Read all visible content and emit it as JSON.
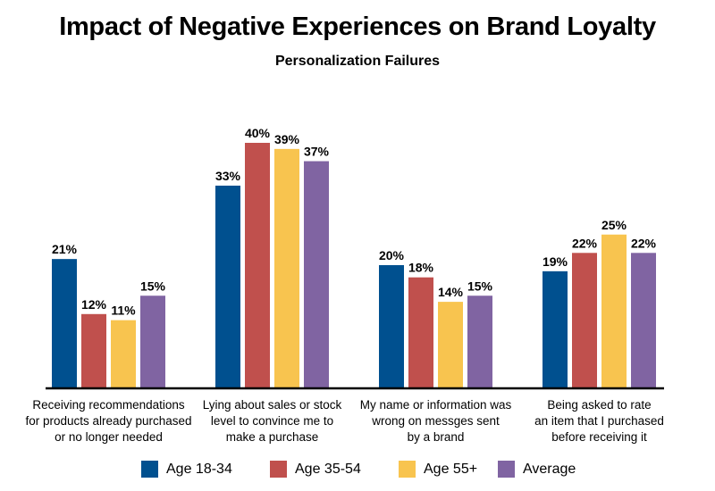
{
  "chart_data": {
    "type": "bar",
    "title": "Impact of Negative Experiences on Brand Loyalty",
    "subtitle": "Personalization Failures",
    "xlabel": "",
    "ylabel": "",
    "ylim": [
      0,
      45
    ],
    "grid": false,
    "legend_position": "bottom",
    "categories": [
      [
        "Receiving recommendations",
        "for products already purchased",
        "or no longer needed"
      ],
      [
        "Lying about sales or stock",
        "level to convince me to",
        "make a purchase"
      ],
      [
        "My name or information was",
        "wrong on messges sent",
        "by a brand"
      ],
      [
        "Being asked to rate",
        "an item that I purchased",
        "before receiving it"
      ]
    ],
    "series": [
      {
        "name": "Age 18-34",
        "color": "#00508F",
        "values": [
          21,
          33,
          20,
          19
        ],
        "labels": [
          "21%",
          "33%",
          "20%",
          "19%"
        ]
      },
      {
        "name": "Age 35-54",
        "color": "#C0504D",
        "values": [
          12,
          40,
          18,
          22
        ],
        "labels": [
          "12%",
          "40%",
          "18%",
          "22%"
        ]
      },
      {
        "name": "Age 55+",
        "color": "#F8C44F",
        "values": [
          11,
          39,
          14,
          25
        ],
        "labels": [
          "11%",
          "39%",
          "14%",
          "25%"
        ]
      },
      {
        "name": "Average",
        "color": "#8064A2",
        "values": [
          15,
          37,
          15,
          22
        ],
        "labels": [
          "15%",
          "37%",
          "15%",
          "22%"
        ]
      }
    ]
  }
}
